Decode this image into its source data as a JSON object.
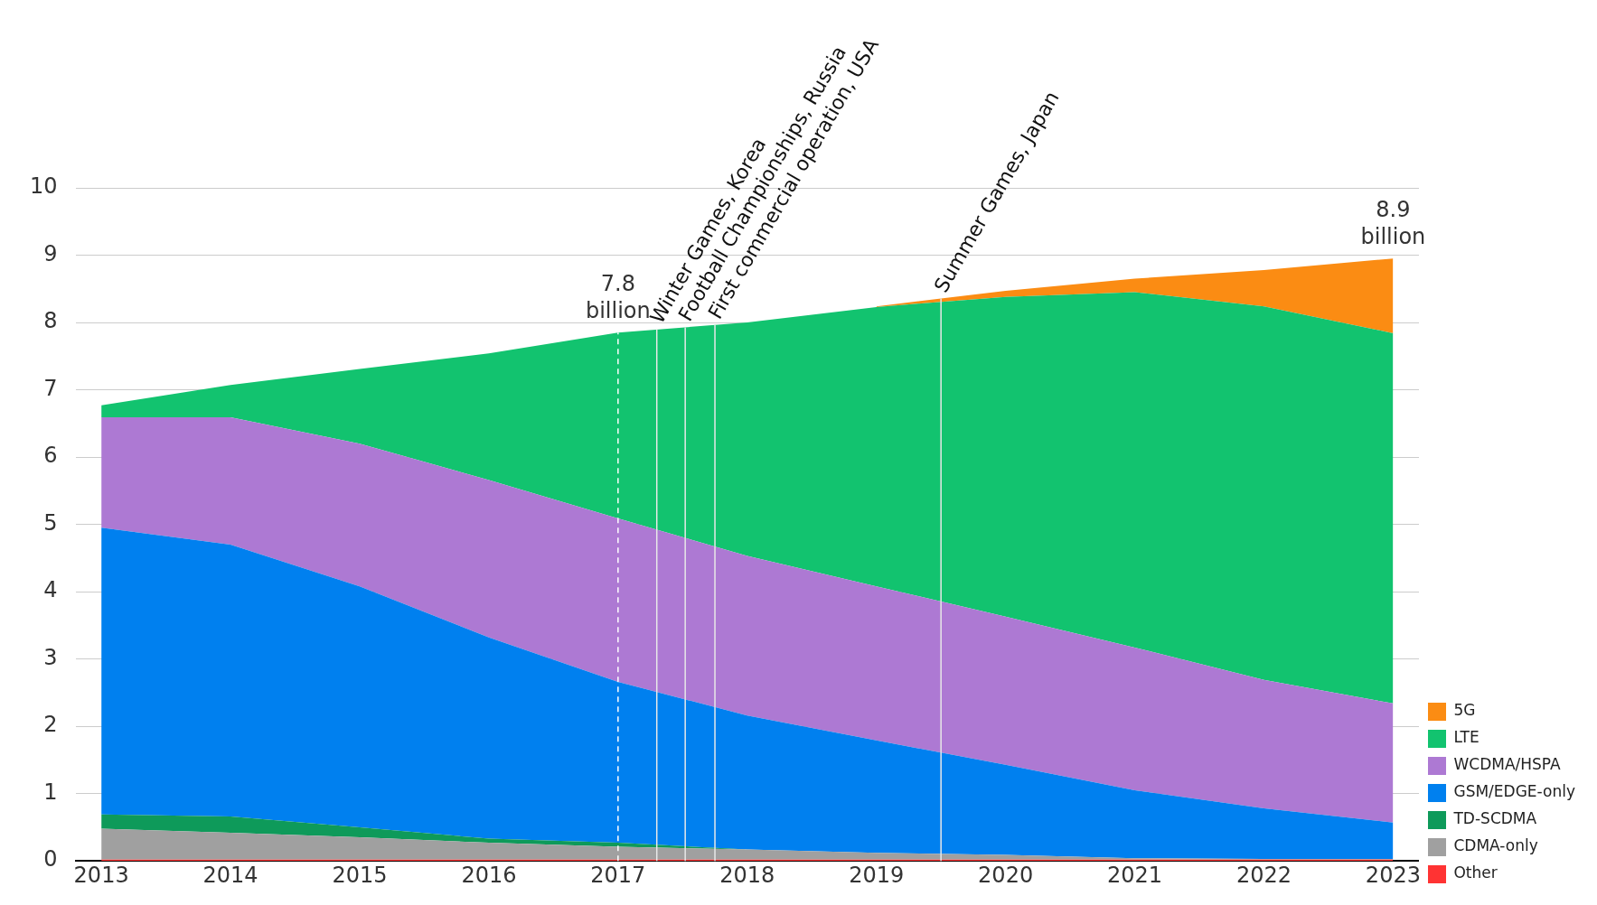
{
  "chart_data": {
    "type": "area",
    "stacked": true,
    "x": [
      2013,
      2014,
      2015,
      2016,
      2017,
      2018,
      2019,
      2020,
      2021,
      2022,
      2023
    ],
    "xlim": [
      2012.8,
      2023.2
    ],
    "xticks": [
      2013,
      2014,
      2015,
      2016,
      2017,
      2018,
      2019,
      2020,
      2021,
      2022,
      2023
    ],
    "ylim": [
      0,
      10
    ],
    "yticks": [
      0,
      1,
      2,
      3,
      4,
      5,
      6,
      7,
      8,
      9,
      10
    ],
    "grid": "y",
    "legend": "bottom right",
    "series": [
      {
        "name": "Other",
        "color": "#ff3333",
        "values": [
          0.02,
          0.02,
          0.02,
          0.02,
          0.02,
          0.02,
          0.02,
          0.02,
          0.02,
          0.02,
          0.02
        ]
      },
      {
        "name": "CDMA-only",
        "color": "#a0a0a0",
        "values": [
          0.46,
          0.4,
          0.33,
          0.25,
          0.19,
          0.15,
          0.1,
          0.07,
          0.02,
          0.01,
          0.01
        ]
      },
      {
        "name": "TD-SCDMA",
        "color": "#0e9a5a",
        "values": [
          0.21,
          0.24,
          0.15,
          0.06,
          0.06,
          0,
          0,
          0,
          0,
          0,
          0
        ]
      },
      {
        "name": "GSM/EDGE-only",
        "color": "#0080ef",
        "values": [
          4.26,
          4.04,
          3.58,
          2.99,
          2.39,
          1.99,
          1.67,
          1.34,
          1.01,
          0.75,
          0.54
        ]
      },
      {
        "name": "WCDMA/HSPA",
        "color": "#ad79d3",
        "values": [
          1.64,
          1.89,
          2.12,
          2.34,
          2.43,
          2.37,
          2.29,
          2.2,
          2.12,
          1.91,
          1.77
        ]
      },
      {
        "name": "LTE",
        "color": "#12c36f",
        "values": [
          0.18,
          0.48,
          1.11,
          1.88,
          2.76,
          3.47,
          4.15,
          4.75,
          5.28,
          5.55,
          5.5
        ]
      },
      {
        "name": "5G",
        "color": "#fb8c13",
        "values": [
          null,
          null,
          null,
          null,
          null,
          null,
          0.01,
          0.09,
          0.2,
          0.54,
          1.11
        ]
      }
    ],
    "ref_lines": [
      {
        "axis": "x",
        "value": 2017,
        "color": "#ffffff",
        "line_style": "dashed"
      },
      {
        "axis": "x",
        "value": 2017.3,
        "label": "Winter Games, Korea",
        "color": "#e8e8e8",
        "line_style": "solid"
      },
      {
        "axis": "x",
        "value": 2017.52,
        "label": "Football Championships, Russia",
        "color": "#e8e8e8",
        "line_style": "solid"
      },
      {
        "axis": "x",
        "value": 2017.75,
        "label": "First commercial operation, USA",
        "color": "#e8e8e8",
        "line_style": "solid"
      },
      {
        "axis": "x",
        "value": 2019.5,
        "label": "Summer Games, Japan",
        "color": "#e8e8e8",
        "line_style": "solid"
      }
    ],
    "annotations": [
      {
        "text": "7.8 billion",
        "x": 2017,
        "y": 7.8
      },
      {
        "text": "8.9 billion",
        "x": 2023,
        "y": 8.9
      }
    ]
  }
}
